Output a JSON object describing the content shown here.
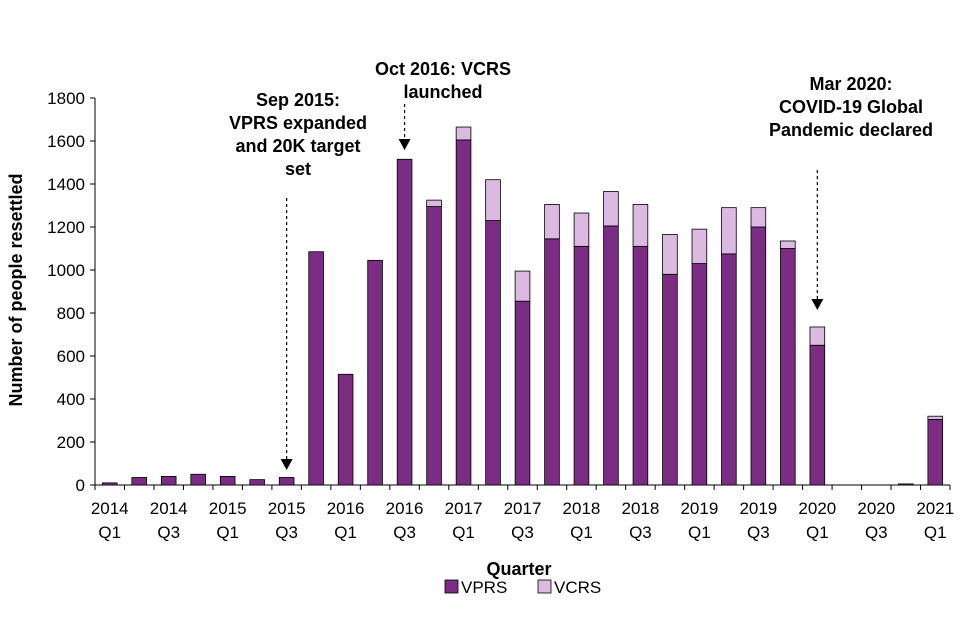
{
  "chart_data": {
    "type": "bar",
    "stacked": true,
    "title": "",
    "xlabel": "Quarter",
    "ylabel": "Number of people resettled",
    "ylim": [
      0,
      1800
    ],
    "yticks": [
      0,
      200,
      400,
      600,
      800,
      1000,
      1200,
      1400,
      1600,
      1800
    ],
    "categories": [
      "2014 Q1",
      "2014 Q2",
      "2014 Q3",
      "2014 Q4",
      "2015 Q1",
      "2015 Q2",
      "2015 Q3",
      "2015 Q4",
      "2016 Q1",
      "2016 Q2",
      "2016 Q3",
      "2016 Q4",
      "2017 Q1",
      "2017 Q2",
      "2017 Q3",
      "2017 Q4",
      "2018 Q1",
      "2018 Q2",
      "2018 Q3",
      "2018 Q4",
      "2019 Q1",
      "2019 Q2",
      "2019 Q3",
      "2019 Q4",
      "2020 Q1",
      "2020 Q2",
      "2020 Q3",
      "2020 Q4",
      "2021 Q1"
    ],
    "x_tick_labels": [
      {
        "index": 0,
        "year": "2014",
        "quarter": "Q1"
      },
      {
        "index": 2,
        "year": "2014",
        "quarter": "Q3"
      },
      {
        "index": 4,
        "year": "2015",
        "quarter": "Q1"
      },
      {
        "index": 6,
        "year": "2015",
        "quarter": "Q3"
      },
      {
        "index": 8,
        "year": "2016",
        "quarter": "Q1"
      },
      {
        "index": 10,
        "year": "2016",
        "quarter": "Q3"
      },
      {
        "index": 12,
        "year": "2017",
        "quarter": "Q1"
      },
      {
        "index": 14,
        "year": "2017",
        "quarter": "Q3"
      },
      {
        "index": 16,
        "year": "2018",
        "quarter": "Q1"
      },
      {
        "index": 18,
        "year": "2018",
        "quarter": "Q3"
      },
      {
        "index": 20,
        "year": "2019",
        "quarter": "Q1"
      },
      {
        "index": 22,
        "year": "2019",
        "quarter": "Q3"
      },
      {
        "index": 24,
        "year": "2020",
        "quarter": "Q1"
      },
      {
        "index": 26,
        "year": "2020",
        "quarter": "Q3"
      },
      {
        "index": 28,
        "year": "2021",
        "quarter": "Q1"
      }
    ],
    "series": [
      {
        "name": "VPRS",
        "color": "#7b2d83",
        "values": [
          10,
          35,
          40,
          50,
          40,
          25,
          35,
          1085,
          515,
          1045,
          1515,
          1295,
          1605,
          1230,
          855,
          1145,
          1110,
          1205,
          1110,
          980,
          1030,
          1075,
          1200,
          1100,
          650,
          0,
          0,
          5,
          305
        ]
      },
      {
        "name": "VCRS",
        "color": "#dcb9e0",
        "values": [
          0,
          0,
          0,
          0,
          0,
          0,
          0,
          0,
          0,
          0,
          0,
          30,
          60,
          190,
          140,
          160,
          155,
          160,
          195,
          185,
          160,
          215,
          90,
          35,
          85,
          0,
          0,
          0,
          15
        ]
      }
    ],
    "legend": [
      "VPRS",
      "VCRS"
    ],
    "legend_position": "bottom",
    "annotations": [
      {
        "index": 6,
        "lines": [
          "Sep 2015:",
          "VPRS expanded",
          "and 20K target",
          "set"
        ]
      },
      {
        "index": 10,
        "lines": [
          "Oct 2016: VCRS",
          "launched"
        ]
      },
      {
        "index": 24,
        "lines": [
          "Mar 2020:",
          "COVID-19 Global",
          "Pandemic declared"
        ]
      }
    ]
  }
}
